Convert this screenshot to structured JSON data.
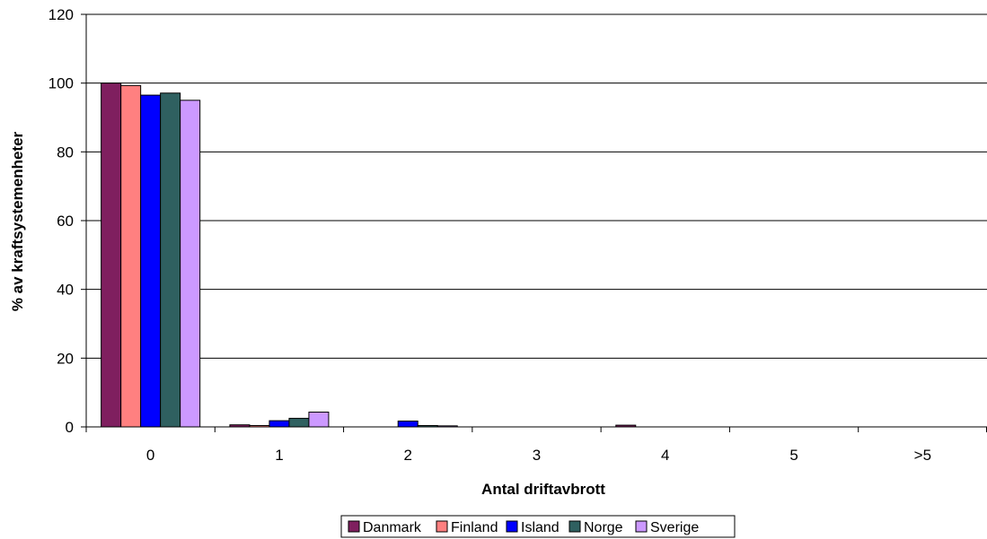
{
  "chart_data": {
    "type": "bar",
    "title": "",
    "xlabel": "Antal driftavbrott",
    "ylabel": "% av kraftsystemenheter",
    "categories": [
      "0",
      "1",
      "2",
      "3",
      "4",
      "5",
      ">5"
    ],
    "ylim": [
      0,
      120
    ],
    "yticks": [
      0,
      20,
      40,
      60,
      80,
      100,
      120
    ],
    "grid": true,
    "legend": "bottom",
    "series": [
      {
        "name": "Danmark",
        "color": "#7F1F5F",
        "values": [
          100,
          0.6,
          0,
          0,
          0.5,
          0,
          0
        ]
      },
      {
        "name": "Finland",
        "color": "#FF8080",
        "values": [
          99.3,
          0.4,
          0,
          0,
          0,
          0,
          0
        ]
      },
      {
        "name": "Island",
        "color": "#0000FF",
        "values": [
          96.5,
          1.8,
          1.7,
          0,
          0,
          0,
          0
        ]
      },
      {
        "name": "Norge",
        "color": "#2F6060",
        "values": [
          97.1,
          2.5,
          0.4,
          0,
          0,
          0,
          0
        ]
      },
      {
        "name": "Sverige",
        "color": "#CC99FF",
        "values": [
          95,
          4.3,
          0.3,
          0,
          0,
          0,
          0
        ]
      }
    ]
  }
}
